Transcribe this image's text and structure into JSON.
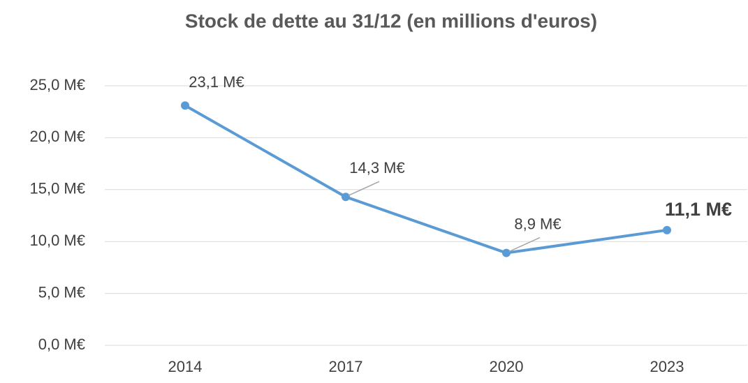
{
  "chart_data": {
    "type": "line",
    "title": "Stock de dette au 31/12 (en millions d'euros)",
    "categories": [
      "2014",
      "2017",
      "2020",
      "2023"
    ],
    "series": [
      {
        "name": "Stock de dette",
        "color": "#5b9bd5",
        "values": [
          23.1,
          14.3,
          8.9,
          11.1
        ],
        "value_labels": [
          "23,1 M€",
          "14,3 M€",
          "8,9 M€",
          "11,1 M€"
        ]
      }
    ],
    "ylim": [
      0,
      25
    ],
    "yticks": [
      {
        "value": 0,
        "label": "0,0 M€"
      },
      {
        "value": 5,
        "label": "5,0 M€"
      },
      {
        "value": 10,
        "label": "10,0 M€"
      },
      {
        "value": 15,
        "label": "15,0 M€"
      },
      {
        "value": 20,
        "label": "20,0 M€"
      },
      {
        "value": 25,
        "label": "25,0 M€"
      }
    ],
    "grid": true
  }
}
